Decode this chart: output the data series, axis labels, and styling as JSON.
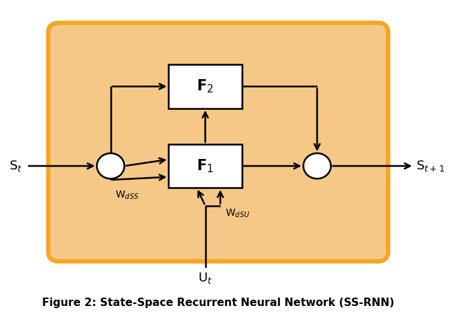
{
  "title": "Figure 2: State-Space Recurrent Neural Network (SS-RNN)",
  "bg_rect_color": "#F5A623",
  "bg_fill_color": "#F5C888",
  "box_color": "#000000",
  "box_fill": "#FFFFFF",
  "circle_fill": "#FFFFFF",
  "circle_edge": "#000000",
  "arrow_color": "#000000",
  "F1_label": "F$_1$",
  "F2_label": "F$_2$",
  "St_label": "S$_t$",
  "St1_label": "S$_{t+1}$",
  "Ut_label": "U$_t$",
  "WdSS_label": "W$_{dSS}$",
  "WdSU_label": "W$_{dSU}$",
  "fig_width": 6.4,
  "fig_height": 4.57
}
